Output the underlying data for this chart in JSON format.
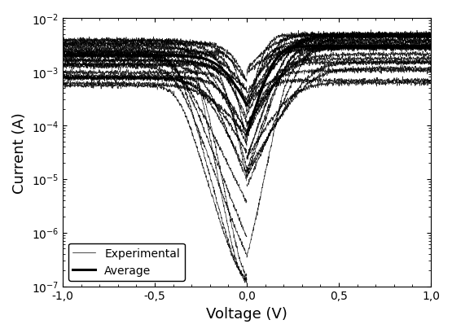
{
  "xlabel": "Voltage (V)",
  "ylabel": "Current (A)",
  "xlim": [
    -1.0,
    1.0
  ],
  "ylim_log": [
    -7,
    -2
  ],
  "n_experimental": 25,
  "seed": 7,
  "thin_lw": 0.5,
  "thick_lw": 2.2,
  "line_color": "#000000",
  "bg_color": "#ffffff",
  "legend_loc": "lower left",
  "xlabel_fontsize": 13,
  "ylabel_fontsize": 13,
  "tick_fontsize": 10
}
